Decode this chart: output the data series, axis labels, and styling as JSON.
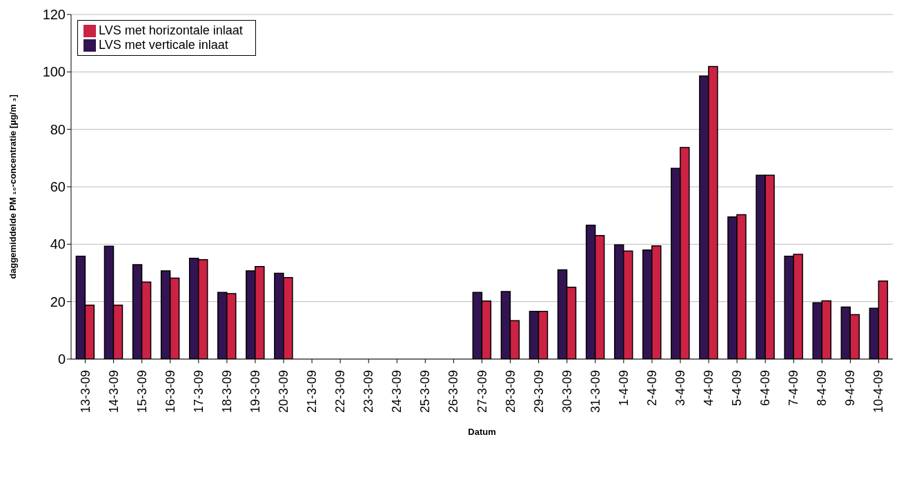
{
  "chart_data": {
    "type": "bar",
    "xlabel": "Datum",
    "ylabel": "daggemiddelde PM ₁₀-concentratie [µg/m ₃]",
    "categories": [
      "13-3-09",
      "14-3-09",
      "15-3-09",
      "16-3-09",
      "17-3-09",
      "18-3-09",
      "19-3-09",
      "20-3-09",
      "21-3-09",
      "22-3-09",
      "23-3-09",
      "24-3-09",
      "25-3-09",
      "26-3-09",
      "27-3-09",
      "28-3-09",
      "29-3-09",
      "30-3-09",
      "31-3-09",
      "1-4-09",
      "2-4-09",
      "3-4-09",
      "4-4-09",
      "5-4-09",
      "6-4-09",
      "7-4-09",
      "8-4-09",
      "9-4-09",
      "10-4-09"
    ],
    "series": [
      {
        "name": "LVS met verticale inlaat",
        "color": "#331452",
        "values": [
          35.8,
          39.3,
          32.9,
          30.7,
          35.1,
          23.2,
          30.7,
          29.9,
          null,
          null,
          null,
          null,
          null,
          null,
          23.2,
          23.5,
          16.6,
          31.1,
          46.6,
          39.8,
          38.0,
          66.4,
          98.6,
          49.5,
          64.0,
          35.8,
          19.6,
          18.1,
          17.7
        ]
      },
      {
        "name": "LVS met horizontale inlaat",
        "color": "#cc2244",
        "values": [
          18.8,
          18.8,
          26.8,
          28.2,
          34.6,
          22.8,
          32.2,
          28.4,
          null,
          null,
          null,
          null,
          null,
          null,
          20.2,
          13.4,
          16.6,
          25.0,
          43.0,
          37.6,
          39.4,
          73.7,
          101.9,
          50.3,
          64.0,
          36.5,
          20.3,
          15.5,
          27.2
        ]
      }
    ],
    "ylim": [
      0,
      120
    ],
    "yticks": [
      0,
      20,
      40,
      60,
      80,
      100,
      120
    ],
    "grid": "y",
    "legend": "top left"
  }
}
